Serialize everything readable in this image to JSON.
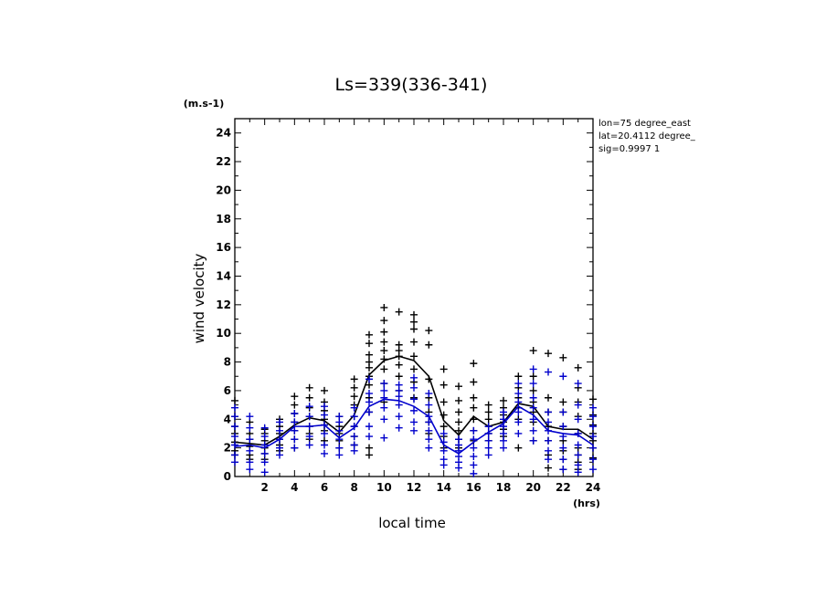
{
  "chart_data": {
    "type": "line",
    "title": "Ls=339(336-341)",
    "xlabel": "local time",
    "ylabel": "wind velocity",
    "x_unit": "(hrs)",
    "y_unit": "(m.s-1)",
    "info": [
      "lon=75 degree_east",
      "lat=20.4112 degree_",
      "sig=0.9997 1"
    ],
    "xlim": [
      0,
      24
    ],
    "ylim": [
      0,
      25
    ],
    "xticks": [
      2,
      4,
      6,
      8,
      10,
      12,
      14,
      16,
      18,
      20,
      22,
      24
    ],
    "yticks": [
      0,
      2,
      4,
      6,
      8,
      10,
      12,
      14,
      16,
      18,
      20,
      22,
      24
    ],
    "x": [
      0,
      1,
      2,
      3,
      4,
      5,
      6,
      7,
      8,
      9,
      10,
      11,
      12,
      13,
      14,
      15,
      16,
      17,
      18,
      19,
      20,
      21,
      22,
      23,
      24
    ],
    "series": [
      {
        "color": "#000000",
        "mean": [
          2.4,
          2.3,
          2.2,
          2.8,
          3.6,
          4.1,
          3.9,
          3.1,
          4.3,
          7.1,
          8.1,
          8.4,
          8.1,
          7.0,
          3.9,
          2.9,
          4.2,
          3.5,
          3.8,
          5.1,
          4.9,
          3.5,
          3.3,
          3.3,
          2.6
        ],
        "samples": [
          [
            2.4,
            3.0,
            3.5,
            4.2,
            5.3,
            1.8,
            1.5
          ],
          [
            2.1,
            2.6,
            3.0,
            3.8,
            1.5,
            1.2
          ],
          [
            1.6,
            2.0,
            2.5,
            3.0,
            3.3,
            1.2
          ],
          [
            2.2,
            2.6,
            3.0,
            3.5,
            4.0,
            1.8
          ],
          [
            2.6,
            3.2,
            3.8,
            4.4,
            5.0,
            5.6,
            2.0
          ],
          [
            3.0,
            3.5,
            4.2,
            4.8,
            5.5,
            6.2,
            2.6
          ],
          [
            3.2,
            3.6,
            4.0,
            4.6,
            5.2,
            6.0,
            2.5
          ],
          [
            2.5,
            3.0,
            3.5,
            4.2,
            2.0
          ],
          [
            2.8,
            3.5,
            4.2,
            5.0,
            5.6,
            6.2,
            6.8,
            2.2
          ],
          [
            4.5,
            5.5,
            6.4,
            7.0,
            7.6,
            8.0,
            8.5,
            9.3,
            9.9,
            2.0,
            1.5
          ],
          [
            5.2,
            6.5,
            7.5,
            8.2,
            8.8,
            9.4,
            10.1,
            10.9,
            11.8
          ],
          [
            6.0,
            7.0,
            7.8,
            8.4,
            8.8,
            9.2,
            11.5
          ],
          [
            5.5,
            6.6,
            7.5,
            8.4,
            9.4,
            10.3,
            10.8,
            11.3
          ],
          [
            3.0,
            3.8,
            4.5,
            5.5,
            6.8,
            10.2,
            9.2
          ],
          [
            2.0,
            2.8,
            3.5,
            4.3,
            5.2,
            6.4,
            7.5
          ],
          [
            2.0,
            2.6,
            3.2,
            3.8,
            4.5,
            5.3,
            6.3
          ],
          [
            2.5,
            3.2,
            4.0,
            4.8,
            5.5,
            6.6,
            7.9
          ],
          [
            2.5,
            3.0,
            3.5,
            4.0,
            4.5,
            5.0
          ],
          [
            2.8,
            3.3,
            3.8,
            4.3,
            4.8,
            5.3
          ],
          [
            2.0,
            4.0,
            4.8,
            5.5,
            6.2,
            7.0
          ],
          [
            2.5,
            3.8,
            4.5,
            5.2,
            6.0,
            7.0,
            8.8
          ],
          [
            0.6,
            1.5,
            2.5,
            3.5,
            4.5,
            5.5,
            8.6
          ],
          [
            0.5,
            1.2,
            1.8,
            2.5,
            3.5,
            4.5,
            5.2,
            8.3
          ],
          [
            0.5,
            1.0,
            1.5,
            2.0,
            3.0,
            4.2,
            5.2,
            6.2,
            7.6
          ],
          [
            1.3,
            2.0,
            2.5,
            3.0,
            3.6,
            4.3,
            5.4
          ]
        ]
      },
      {
        "color": "#0000cc",
        "mean": [
          2.1,
          2.2,
          2.0,
          2.6,
          3.5,
          3.5,
          3.6,
          2.7,
          3.4,
          4.9,
          5.4,
          5.3,
          4.9,
          4.2,
          2.2,
          1.6,
          2.4,
          3.1,
          3.7,
          4.9,
          4.3,
          3.2,
          3.0,
          2.9,
          2.2
        ],
        "samples": [
          [
            1.0,
            1.5,
            2.2,
            2.8,
            3.5,
            4.2,
            4.8
          ],
          [
            0.5,
            1.0,
            1.8,
            2.6,
            3.4,
            4.2
          ],
          [
            0.3,
            1.0,
            1.6,
            2.2,
            2.8,
            3.4
          ],
          [
            1.5,
            2.0,
            2.6,
            3.2,
            3.8
          ],
          [
            2.0,
            2.6,
            3.2,
            3.8,
            4.4
          ],
          [
            2.2,
            2.8,
            3.5,
            4.2,
            4.9
          ],
          [
            1.6,
            2.2,
            3.0,
            3.6,
            4.3,
            4.9
          ],
          [
            1.5,
            2.0,
            2.6,
            3.2,
            3.8,
            4.2
          ],
          [
            1.8,
            2.2,
            2.8,
            3.5,
            4.2,
            4.8
          ],
          [
            2.8,
            3.5,
            4.5,
            5.2,
            5.8,
            6.8
          ],
          [
            2.7,
            4.0,
            4.8,
            5.5,
            6.0,
            6.5
          ],
          [
            3.4,
            4.2,
            5.0,
            5.6,
            6.0,
            6.4
          ],
          [
            3.2,
            3.8,
            4.6,
            5.4,
            6.2,
            6.9
          ],
          [
            2.0,
            2.6,
            3.2,
            3.8,
            4.2,
            5.0,
            5.8
          ],
          [
            0.8,
            1.2,
            1.8,
            2.4,
            3.0
          ],
          [
            0.6,
            1.0,
            1.4,
            1.8,
            2.2,
            2.6
          ],
          [
            0.2,
            0.8,
            1.4,
            2.0,
            2.6,
            3.2
          ],
          [
            1.5,
            2.0,
            2.5,
            3.0,
            3.5
          ],
          [
            2.0,
            2.5,
            3.0,
            3.5,
            4.0,
            4.5
          ],
          [
            3.0,
            3.8,
            4.5,
            5.2,
            5.8,
            6.5
          ],
          [
            2.5,
            3.2,
            4.0,
            4.8,
            5.5,
            6.5,
            7.5
          ],
          [
            1.2,
            1.8,
            2.5,
            3.2,
            3.8,
            4.5,
            7.3
          ],
          [
            0.5,
            1.2,
            2.0,
            2.8,
            3.5,
            4.5,
            7.0
          ],
          [
            0.3,
            0.8,
            1.5,
            2.2,
            3.0,
            4.0,
            5.0,
            6.5
          ],
          [
            0.5,
            1.2,
            2.0,
            2.8,
            3.5,
            4.2,
            4.8
          ]
        ]
      }
    ]
  }
}
